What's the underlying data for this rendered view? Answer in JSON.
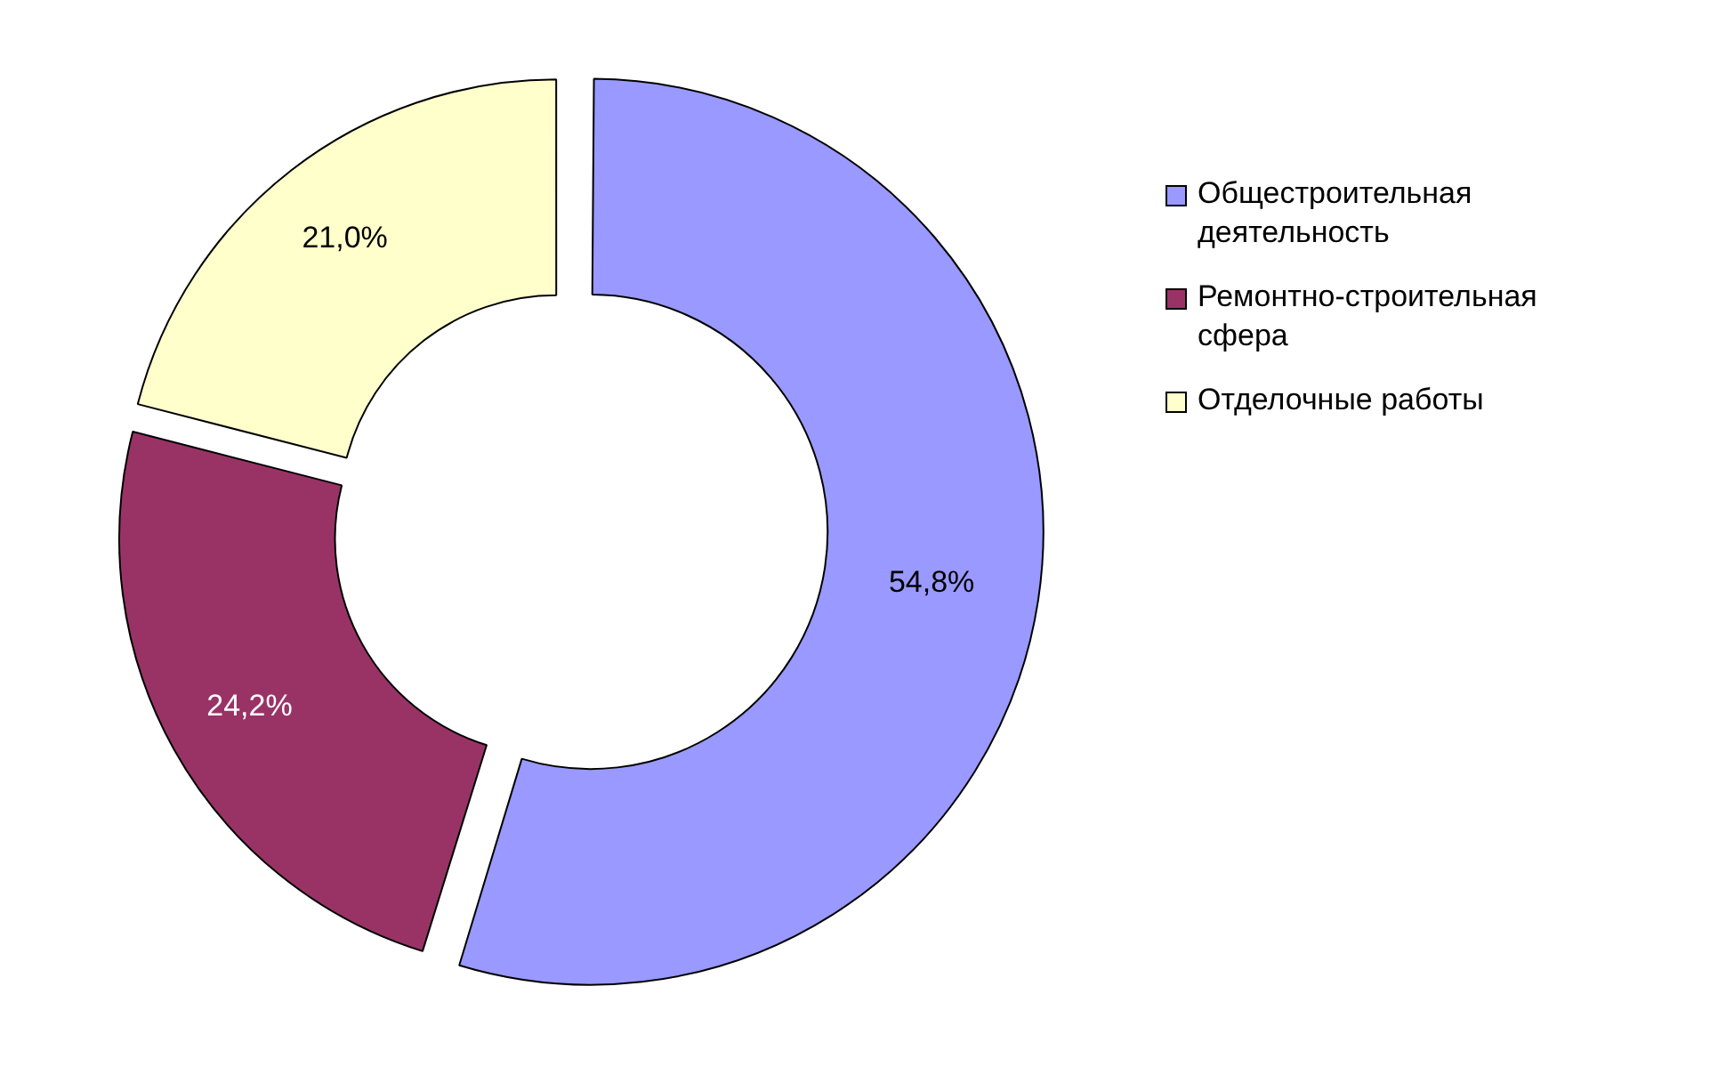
{
  "chart_data": {
    "type": "donut",
    "categories": [
      "Общестроительная деятельность",
      "Ремонтно-строительная сфера",
      "Отделочные работы"
    ],
    "values": [
      54.8,
      24.2,
      21.0
    ],
    "colors": [
      "#9999ff",
      "#993366",
      "#ffffcc"
    ],
    "value_labels": [
      "54,8%",
      "24,2%",
      "21,0%"
    ],
    "legend": "right"
  }
}
